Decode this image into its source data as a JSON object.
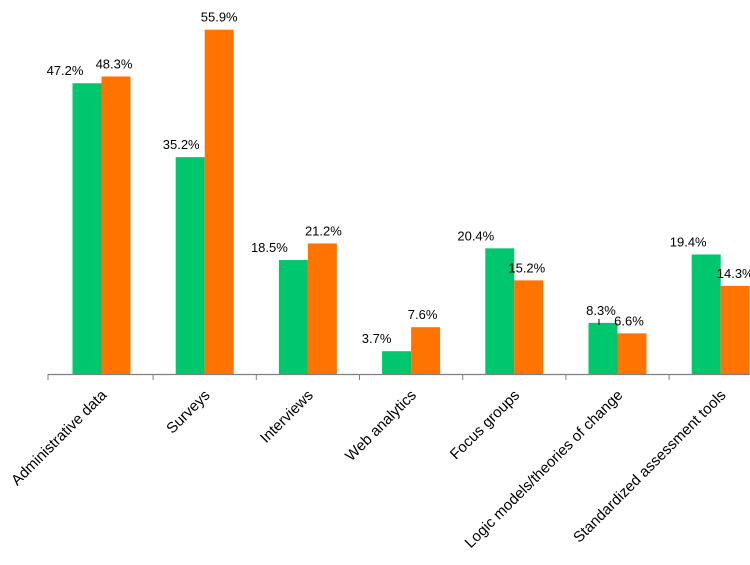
{
  "chart_data": {
    "type": "bar",
    "categories": [
      "Administrative data",
      "Surveys",
      "Interviews",
      "Web analytics",
      "Focus groups",
      "Logic models/theories of change",
      "Standardized assessment tools"
    ],
    "series": [
      {
        "values": [
          47.2,
          35.2,
          18.5,
          3.7,
          20.4,
          8.3,
          19.4
        ],
        "labels": [
          "47.2%",
          "35.2%",
          "18.5%",
          "3.7%",
          "20.4%",
          "8.3%",
          "19.4%"
        ],
        "color": "#00C66E"
      },
      {
        "values": [
          48.3,
          55.9,
          21.2,
          7.6,
          15.2,
          6.6,
          14.3
        ],
        "labels": [
          "48.3%",
          "55.9%",
          "21.2%",
          "7.6%",
          "15.2%",
          "6.6%",
          "14.3%"
        ],
        "color": "#FF7400"
      }
    ],
    "title": "",
    "xlabel": "",
    "ylabel": "",
    "ylim": [
      0,
      60
    ],
    "grid": false,
    "legend": "none",
    "axis_color": "#808080"
  }
}
